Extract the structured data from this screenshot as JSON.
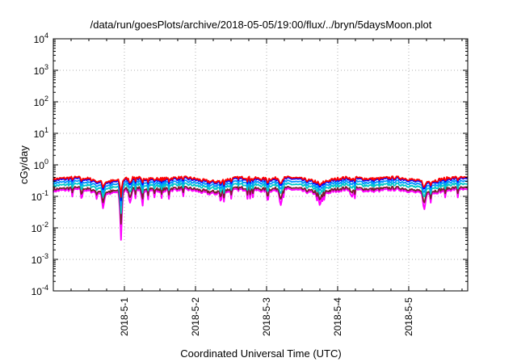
{
  "chart_data": {
    "type": "line",
    "title": "/data/run/goesPlots/archive/2018-05-05/19:00/flux/../bryn/5daysMoon.plot",
    "xlabel": "Coordinated Universal Time (UTC)",
    "ylabel": "cGy/day",
    "y_scale": "log",
    "ylim_exponents": [
      -4,
      4
    ],
    "y_tick_labels": [
      {
        "base": "10",
        "exp": "4"
      },
      {
        "base": "10",
        "exp": "3"
      },
      {
        "base": "10",
        "exp": "2"
      },
      {
        "base": "10",
        "exp": "1"
      },
      {
        "base": "10",
        "exp": "0"
      },
      {
        "base": "10",
        "exp": "-1"
      },
      {
        "base": "10",
        "exp": "-2"
      },
      {
        "base": "10",
        "exp": "-3"
      },
      {
        "base": "10",
        "exp": "-4"
      }
    ],
    "x_range_days": [
      0,
      5.83
    ],
    "x_tick_labels": [
      "2018-5-1",
      "2018-5-2",
      "2018-5-3",
      "2018-5-4",
      "2018-5-5"
    ],
    "x_tick_days": [
      1,
      2,
      3,
      4,
      5
    ],
    "grid": true,
    "series_colors": [
      "#ff0000",
      "#0000ff",
      "#0096ff",
      "#00c8c8",
      "#7a1f2f",
      "#ff00ff"
    ],
    "series_levels": [
      0.36,
      0.33,
      0.27,
      0.22,
      0.17,
      0.15
    ],
    "series_dip_depth": [
      0.35,
      0.4,
      0.45,
      0.55,
      0.7,
      1.0
    ],
    "dips": [
      {
        "t": 0.95,
        "value": 0.003
      },
      {
        "t": 0.7,
        "value": 0.055
      },
      {
        "t": 1.08,
        "value": 0.06
      },
      {
        "t": 1.25,
        "value": 0.07
      },
      {
        "t": 3.2,
        "value": 0.05
      },
      {
        "t": 3.75,
        "value": 0.06
      },
      {
        "t": 4.2,
        "value": 0.085
      },
      {
        "t": 5.22,
        "value": 0.045
      }
    ]
  }
}
